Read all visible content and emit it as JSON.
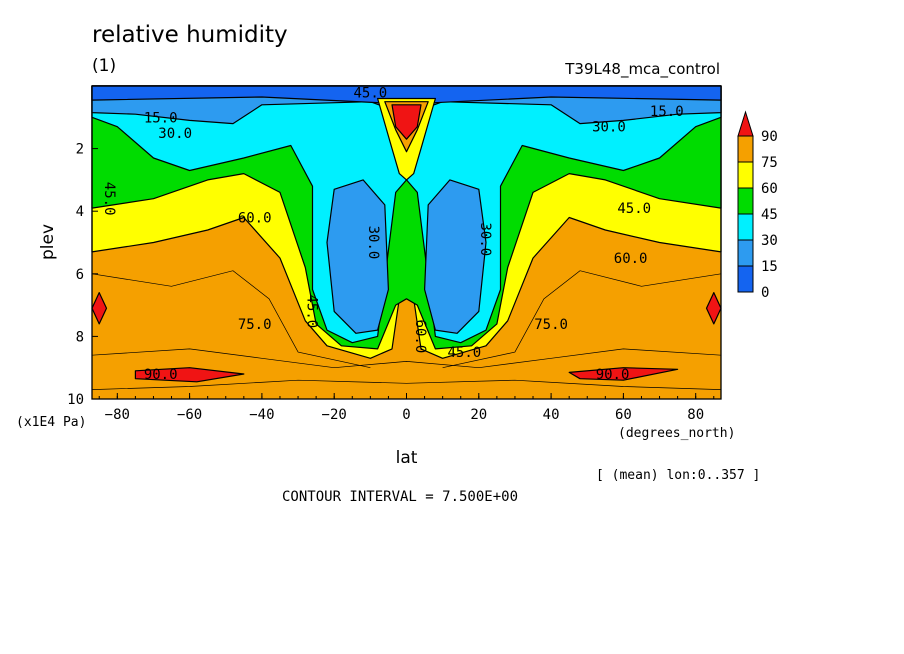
{
  "title": "relative humidity",
  "subtitle": "(1)",
  "run_name": "T39L48_mca_control",
  "mean_note": "[ (mean) lon:0..357 ]",
  "contour_note": "CONTOUR INTERVAL = 7.500E+00",
  "colors": {
    "c0": "#1464f0",
    "c15": "#2d9bf0",
    "c30": "#00f0ff",
    "c45": "#00dc00",
    "c60": "#ffff00",
    "c75": "#f5a000",
    "c90": "#f01414"
  },
  "chart_data": {
    "type": "heatmap",
    "subtype": "filled-contour",
    "xlabel": "lat",
    "xunit": "(degrees_north)",
    "ylabel": "plev",
    "yunit": "(x1E4 Pa)",
    "xlim": [
      -87,
      87
    ],
    "ylim": [
      10,
      0
    ],
    "xticks": [
      -80,
      -60,
      -40,
      -20,
      0,
      20,
      40,
      60,
      80
    ],
    "xtick_labels": [
      "−80",
      "−60",
      "−40",
      "−20",
      "0",
      "20",
      "40",
      "60",
      "80"
    ],
    "yticks": [
      2,
      4,
      6,
      8,
      10
    ],
    "ytick_labels": [
      "2",
      "4",
      "6",
      "8",
      "10"
    ],
    "contour_interval": 7.5,
    "levels": [
      0,
      15,
      30,
      45,
      60,
      75,
      90
    ],
    "level_labels": [
      "0",
      "15",
      "30",
      "45",
      "60",
      "75",
      "90"
    ],
    "contour_labels": [
      {
        "text": "15.0",
        "lat": -68,
        "p": 1.0
      },
      {
        "text": "30.0",
        "lat": -64,
        "p": 1.5
      },
      {
        "text": "45.0",
        "lat": -10,
        "p": 0.2
      },
      {
        "text": "15.0",
        "lat": 72,
        "p": 0.8
      },
      {
        "text": "30.0",
        "lat": 56,
        "p": 1.3
      },
      {
        "text": "45.0",
        "lat": -82,
        "p": 3.6,
        "vertical": true
      },
      {
        "text": "60.0",
        "lat": -42,
        "p": 4.2
      },
      {
        "text": "45.0",
        "lat": 63,
        "p": 3.9
      },
      {
        "text": "60.0",
        "lat": 62,
        "p": 5.5
      },
      {
        "text": "30.0",
        "lat": -9,
        "p": 5.0,
        "vertical": true
      },
      {
        "text": "30.0",
        "lat": 22,
        "p": 4.9,
        "vertical": true
      },
      {
        "text": "45.0",
        "lat": -26,
        "p": 7.2,
        "vertical": true
      },
      {
        "text": "60.0",
        "lat": 4,
        "p": 8.0,
        "vertical": true
      },
      {
        "text": "45.0",
        "lat": 16,
        "p": 8.5
      },
      {
        "text": "75.0",
        "lat": -42,
        "p": 7.6
      },
      {
        "text": "75.0",
        "lat": 40,
        "p": 7.6
      },
      {
        "text": "90.0",
        "lat": -68,
        "p": 9.2
      },
      {
        "text": "90.0",
        "lat": 57,
        "p": 9.2
      }
    ]
  }
}
